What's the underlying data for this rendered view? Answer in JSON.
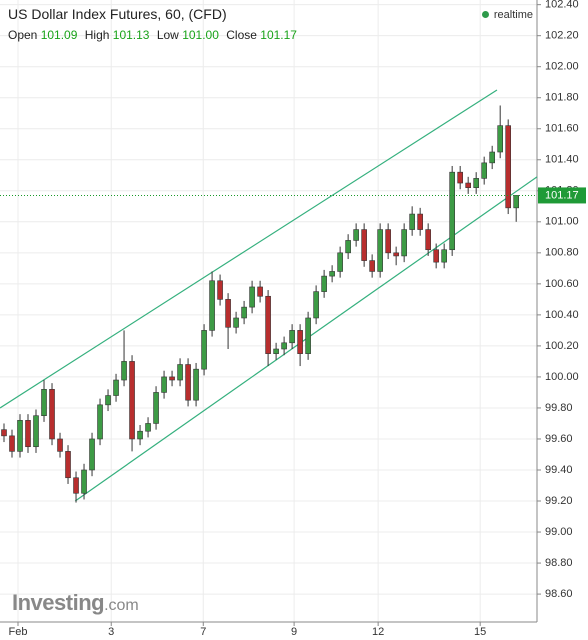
{
  "chart_data": {
    "type": "candlestick",
    "title": "US Dollar Index Futures, 60, (CFD)",
    "realtime": "realtime",
    "legend": [
      [
        "Open",
        "101.09"
      ],
      [
        "High",
        "101.13"
      ],
      [
        "Low",
        "101.00"
      ],
      [
        "Close",
        "101.17"
      ]
    ],
    "watermark": [
      "Investing",
      ".com"
    ],
    "up_color": "#3d9b45",
    "down_color": "#b82e2e",
    "channel_color": "#35b07e",
    "grid": true,
    "xlim": [
      -0.5,
      66.6
    ],
    "xticks": [
      {
        "value": 1.75,
        "label": "Feb"
      },
      {
        "value": 13.4,
        "label": "3"
      },
      {
        "value": 24.9,
        "label": "7"
      },
      {
        "value": 36.25,
        "label": "9"
      },
      {
        "value": 46.75,
        "label": "12"
      },
      {
        "value": 59.5,
        "label": "15"
      }
    ],
    "ylim": [
      98.42,
      102.43
    ],
    "yticks": [
      {
        "value": 98.6,
        "label": "98.60"
      },
      {
        "value": 98.8,
        "label": "98.80"
      },
      {
        "value": 99,
        "label": "99.00"
      },
      {
        "value": 99.2,
        "label": "99.20"
      },
      {
        "value": 99.4,
        "label": "99.40"
      },
      {
        "value": 99.6,
        "label": "99.60"
      },
      {
        "value": 99.8,
        "label": "99.80"
      },
      {
        "value": 100,
        "label": "100.00"
      },
      {
        "value": 100.2,
        "label": "100.20"
      },
      {
        "value": 100.4,
        "label": "100.40"
      },
      {
        "value": 100.6,
        "label": "100.60"
      },
      {
        "value": 100.8,
        "label": "100.80"
      },
      {
        "value": 101,
        "label": "101.00"
      },
      {
        "value": 101.2,
        "label": "101.20"
      },
      {
        "value": 101.4,
        "label": "101.40"
      },
      {
        "value": 101.6,
        "label": "101.60"
      },
      {
        "value": 101.8,
        "label": "101.80"
      },
      {
        "value": 102,
        "label": "102.00"
      },
      {
        "value": 102.2,
        "label": "102.20"
      },
      {
        "value": 102.4,
        "label": "102.40"
      }
    ],
    "last_price": 101.17,
    "channels": [
      {
        "x": [
          -0.5,
          61.6
        ],
        "y": [
          99.8,
          101.85
        ]
      },
      {
        "x": [
          8.9,
          66.6
        ],
        "y": [
          99.2,
          101.29
        ]
      }
    ],
    "open": [
      99.66,
      99.62,
      99.52,
      99.72,
      99.55,
      99.75,
      99.92,
      99.6,
      99.52,
      99.35,
      99.25,
      99.4,
      99.6,
      99.82,
      99.88,
      99.98,
      100.1,
      99.6,
      99.65,
      99.7,
      99.9,
      100.0,
      99.98,
      100.08,
      99.85,
      100.05,
      100.3,
      100.62,
      100.5,
      100.32,
      100.38,
      100.45,
      100.58,
      100.52,
      100.15,
      100.18,
      100.22,
      100.3,
      100.15,
      100.38,
      100.55,
      100.65,
      100.68,
      100.8,
      100.88,
      100.95,
      100.75,
      100.68,
      100.95,
      100.8,
      100.78,
      100.95,
      101.05,
      100.95,
      100.82,
      100.74,
      100.82,
      101.32,
      101.25,
      101.22,
      101.28,
      101.38,
      101.45,
      101.62,
      101.09
    ],
    "high": [
      99.7,
      99.66,
      99.76,
      99.76,
      99.79,
      99.98,
      99.96,
      99.64,
      99.56,
      99.39,
      99.44,
      99.64,
      99.86,
      99.92,
      100.02,
      100.3,
      100.14,
      99.69,
      99.74,
      99.94,
      100.04,
      100.04,
      100.12,
      100.12,
      100.09,
      100.34,
      100.68,
      100.66,
      100.54,
      100.42,
      100.49,
      100.62,
      100.62,
      100.56,
      100.22,
      100.26,
      100.34,
      100.34,
      100.42,
      100.59,
      100.69,
      100.72,
      100.84,
      100.92,
      100.99,
      100.99,
      100.79,
      100.99,
      100.99,
      100.84,
      100.99,
      101.1,
      101.09,
      100.99,
      100.86,
      100.86,
      101.36,
      101.36,
      101.29,
      101.32,
      101.42,
      101.49,
      101.75,
      101.66,
      101.13
    ],
    "low": [
      99.58,
      99.48,
      99.48,
      99.51,
      99.51,
      99.71,
      99.56,
      99.48,
      99.31,
      99.19,
      99.21,
      99.36,
      99.56,
      99.78,
      99.84,
      99.94,
      99.52,
      99.56,
      99.61,
      99.66,
      99.86,
      99.94,
      99.94,
      99.81,
      99.81,
      100.01,
      100.26,
      100.46,
      100.18,
      100.28,
      100.34,
      100.41,
      100.48,
      100.07,
      100.11,
      100.14,
      100.18,
      100.07,
      100.11,
      100.34,
      100.51,
      100.61,
      100.64,
      100.76,
      100.84,
      100.71,
      100.64,
      100.64,
      100.76,
      100.72,
      100.74,
      100.91,
      100.91,
      100.78,
      100.7,
      100.7,
      100.78,
      101.21,
      101.18,
      101.18,
      101.24,
      101.34,
      101.41,
      101.05,
      101.0
    ],
    "close": [
      99.62,
      99.52,
      99.72,
      99.55,
      99.75,
      99.92,
      99.6,
      99.52,
      99.35,
      99.25,
      99.4,
      99.6,
      99.82,
      99.88,
      99.98,
      100.1,
      99.6,
      99.65,
      99.7,
      99.9,
      100.0,
      99.98,
      100.08,
      99.85,
      100.05,
      100.3,
      100.62,
      100.5,
      100.32,
      100.38,
      100.45,
      100.58,
      100.52,
      100.15,
      100.18,
      100.22,
      100.3,
      100.15,
      100.38,
      100.55,
      100.65,
      100.68,
      100.8,
      100.88,
      100.95,
      100.75,
      100.68,
      100.95,
      100.8,
      100.78,
      100.95,
      101.05,
      100.95,
      100.82,
      100.74,
      100.82,
      101.32,
      101.25,
      101.22,
      101.28,
      101.38,
      101.45,
      101.62,
      101.09,
      101.17
    ]
  }
}
